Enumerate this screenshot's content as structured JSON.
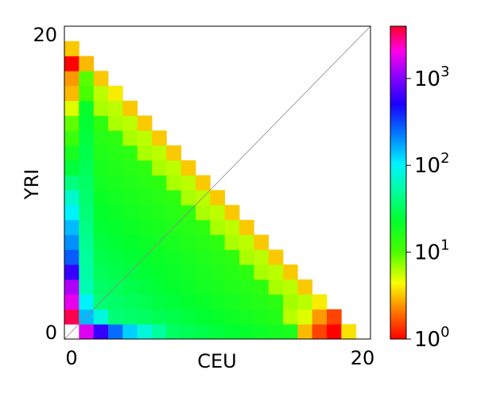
{
  "chart_data": {
    "type": "heatmap",
    "xlabel": "CEU",
    "ylabel": "YRI",
    "x_ticks": [
      "0",
      "20"
    ],
    "y_ticks": [
      "0",
      "20"
    ],
    "xlim": [
      0,
      21
    ],
    "ylim": [
      0,
      21
    ],
    "diagonal_line": true,
    "colorbar": {
      "scale": "log",
      "range": [
        1,
        4000
      ],
      "ticks": [
        {
          "base": "10",
          "exp": "0",
          "value": 1
        },
        {
          "base": "10",
          "exp": "1",
          "value": 10
        },
        {
          "base": "10",
          "exp": "2",
          "value": 100
        },
        {
          "base": "10",
          "exp": "3",
          "value": 1000
        }
      ],
      "colormap": "gist_rainbow"
    },
    "note": "cells: x = CEU count (0-19), y = YRI count (0-19), valid where x + y <= 19",
    "special_cells": [
      {
        "x": 0,
        "y": 0,
        "value": 0
      },
      {
        "x": 1,
        "y": 0,
        "value": 1700
      },
      {
        "x": 2,
        "y": 0,
        "value": 600
      },
      {
        "x": 3,
        "y": 0,
        "value": 250
      },
      {
        "x": 4,
        "y": 0,
        "value": 130
      },
      {
        "x": 5,
        "y": 0,
        "value": 80
      },
      {
        "x": 6,
        "y": 0,
        "value": 50
      },
      {
        "x": 0,
        "y": 1,
        "value": 3500
      },
      {
        "x": 0,
        "y": 2,
        "value": 1800
      },
      {
        "x": 0,
        "y": 3,
        "value": 1300
      },
      {
        "x": 0,
        "y": 4,
        "value": 600
      },
      {
        "x": 0,
        "y": 5,
        "value": 280
      },
      {
        "x": 0,
        "y": 6,
        "value": 200
      },
      {
        "x": 0,
        "y": 7,
        "value": 150
      },
      {
        "x": 0,
        "y": 8,
        "value": 100
      },
      {
        "x": 0,
        "y": 9,
        "value": 70
      },
      {
        "x": 0,
        "y": 10,
        "value": 40
      },
      {
        "x": 0,
        "y": 11,
        "value": 25
      },
      {
        "x": 0,
        "y": 12,
        "value": 18
      },
      {
        "x": 0,
        "y": 13,
        "value": 12
      },
      {
        "x": 0,
        "y": 14,
        "value": 9
      },
      {
        "x": 0,
        "y": 15,
        "value": 5
      },
      {
        "x": 0,
        "y": 16,
        "value": 3
      },
      {
        "x": 0,
        "y": 17,
        "value": 2.5
      },
      {
        "x": 0,
        "y": 18,
        "value": 1
      },
      {
        "x": 1,
        "y": 18,
        "value": 3
      },
      {
        "x": 2,
        "y": 18,
        "value": 1.8
      },
      {
        "x": 3,
        "y": 16,
        "value": 4
      },
      {
        "x": 1,
        "y": 1,
        "value": 150
      },
      {
        "x": 2,
        "y": 1,
        "value": 80
      },
      {
        "x": 1,
        "y": 2,
        "value": 100
      },
      {
        "x": 18,
        "y": 0,
        "value": 1
      },
      {
        "x": 17,
        "y": 0,
        "value": 1.5
      },
      {
        "x": 18,
        "y": 1,
        "value": 1.5
      },
      {
        "x": 16,
        "y": 0,
        "value": 3
      },
      {
        "x": 17,
        "y": 1,
        "value": 2.5
      },
      {
        "x": 17,
        "y": 2,
        "value": 4
      },
      {
        "x": 16,
        "y": 1,
        "value": 5
      },
      {
        "x": 15,
        "y": 1,
        "value": 6
      },
      {
        "x": 16,
        "y": 2,
        "value": 6
      }
    ]
  }
}
